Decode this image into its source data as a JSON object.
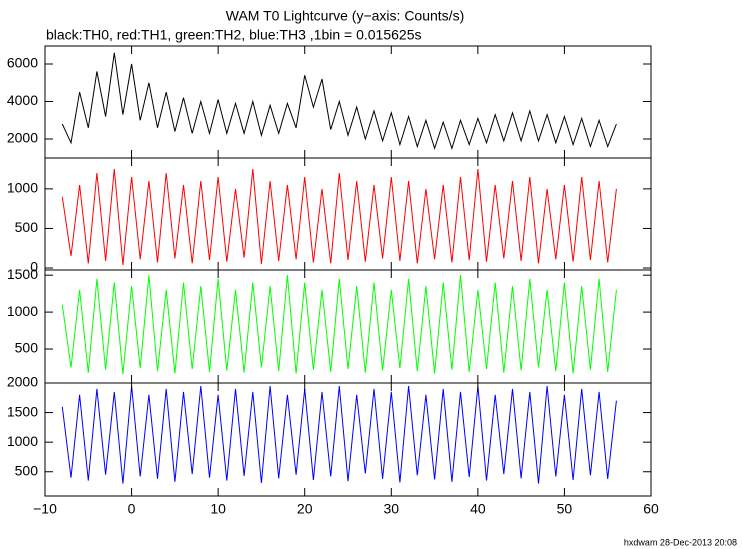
{
  "title": "WAM T0 Lightcurve (y−axis: Counts/s)",
  "subtitle": "black:TH0, red:TH1, green:TH2, blue:TH3 ,1bin = 0.015625s",
  "footer": "hxdwam 28-Dec-2013 20:08",
  "chart_data": [
    {
      "type": "line",
      "xlim": [
        -10,
        60
      ],
      "ylim": [
        987,
        6960
      ],
      "yticks": [
        2000,
        4000,
        6000
      ],
      "x": [
        -8,
        -7,
        -6,
        -5,
        -4,
        -3,
        -2,
        -1,
        0,
        1,
        2,
        3,
        4,
        5,
        6,
        7,
        8,
        9,
        10,
        11,
        12,
        13,
        14,
        15,
        16,
        17,
        18,
        19,
        20,
        21,
        22,
        23,
        24,
        25,
        26,
        27,
        28,
        29,
        30,
        31,
        32,
        33,
        34,
        35,
        36,
        37,
        38,
        39,
        40,
        41,
        42,
        43,
        44,
        45,
        46,
        47,
        48,
        49,
        50,
        51,
        52,
        53,
        54,
        55,
        56
      ],
      "series": [
        {
          "color": "#000000",
          "values": [
            2800,
            1800,
            4500,
            2600,
            5600,
            3200,
            6600,
            3300,
            6000,
            3000,
            5000,
            2600,
            4500,
            2400,
            4200,
            2300,
            4000,
            2300,
            4100,
            2300,
            3900,
            2300,
            4000,
            2200,
            3800,
            2300,
            3900,
            2600,
            5400,
            3700,
            5200,
            2500,
            4000,
            2200,
            3700,
            2000,
            3500,
            1900,
            3400,
            1700,
            3200,
            1600,
            3000,
            1500,
            2900,
            1500,
            3000,
            1700,
            3100,
            1800,
            3300,
            1900,
            3400,
            1900,
            3500,
            1900,
            3300,
            1800,
            3200,
            1700,
            3100,
            1600,
            3000,
            1600,
            2800
          ]
        }
      ]
    },
    {
      "type": "line",
      "xlim": [
        -10,
        60
      ],
      "ylim": [
        -25,
        1390
      ],
      "yticks": [
        0,
        500,
        1000
      ],
      "x": [
        -8,
        -7,
        -6,
        -5,
        -4,
        -3,
        -2,
        -1,
        0,
        1,
        2,
        3,
        4,
        5,
        6,
        7,
        8,
        9,
        10,
        11,
        12,
        13,
        14,
        15,
        16,
        17,
        18,
        19,
        20,
        21,
        22,
        23,
        24,
        25,
        26,
        27,
        28,
        29,
        30,
        31,
        32,
        33,
        34,
        35,
        36,
        37,
        38,
        39,
        40,
        41,
        42,
        43,
        44,
        45,
        46,
        47,
        48,
        49,
        50,
        51,
        52,
        53,
        54,
        55,
        56
      ],
      "series": [
        {
          "color": "#ff0000",
          "values": [
            900,
            150,
            1050,
            60,
            1200,
            90,
            1250,
            40,
            1150,
            110,
            1100,
            70,
            1200,
            120,
            1050,
            60,
            1100,
            100,
            1150,
            80,
            1000,
            130,
            1250,
            50,
            1100,
            90,
            1050,
            110,
            1150,
            70,
            1000,
            60,
            1200,
            100,
            1100,
            80,
            1050,
            120,
            1150,
            90,
            1100,
            60,
            1000,
            110,
            1050,
            70,
            1150,
            100,
            1250,
            80,
            1050,
            120,
            1100,
            90,
            1150,
            60,
            1000,
            110,
            1050,
            80,
            1150,
            100,
            1100,
            70,
            1000
          ]
        }
      ]
    },
    {
      "type": "line",
      "xlim": [
        -10,
        60
      ],
      "ylim": [
        40,
        1570
      ],
      "yticks": [
        500,
        1000,
        1500
      ],
      "x": [
        -8,
        -7,
        -6,
        -5,
        -4,
        -3,
        -2,
        -1,
        0,
        1,
        2,
        3,
        4,
        5,
        6,
        7,
        8,
        9,
        10,
        11,
        12,
        13,
        14,
        15,
        16,
        17,
        18,
        19,
        20,
        21,
        22,
        23,
        24,
        25,
        26,
        27,
        28,
        29,
        30,
        31,
        32,
        33,
        34,
        35,
        36,
        37,
        38,
        39,
        40,
        41,
        42,
        43,
        44,
        45,
        46,
        47,
        48,
        49,
        50,
        51,
        52,
        53,
        54,
        55,
        56
      ],
      "series": [
        {
          "color": "#00ff00",
          "values": [
            1100,
            250,
            1300,
            180,
            1450,
            220,
            1400,
            160,
            1350,
            240,
            1500,
            200,
            1300,
            170,
            1400,
            230,
            1350,
            190,
            1450,
            210,
            1300,
            180,
            1400,
            250,
            1350,
            200,
            1500,
            170,
            1400,
            220,
            1300,
            190,
            1450,
            230,
            1350,
            180,
            1400,
            210,
            1300,
            240,
            1450,
            200,
            1350,
            170,
            1400,
            220,
            1500,
            190,
            1300,
            230,
            1400,
            180,
            1350,
            210,
            1450,
            250,
            1300,
            200,
            1400,
            170,
            1350,
            220,
            1450,
            190,
            1300
          ]
        }
      ]
    },
    {
      "type": "line",
      "xlim": [
        -10,
        60
      ],
      "ylim": [
        90,
        2000
      ],
      "yticks": [
        500,
        1000,
        1500,
        2000
      ],
      "xticks": [
        {
          "value": -10,
          "label": "−10"
        },
        0,
        10,
        20,
        30,
        40,
        50,
        60
      ],
      "x": [
        -8,
        -7,
        -6,
        -5,
        -4,
        -3,
        -2,
        -1,
        0,
        1,
        2,
        3,
        4,
        5,
        6,
        7,
        8,
        9,
        10,
        11,
        12,
        13,
        14,
        15,
        16,
        17,
        18,
        19,
        20,
        21,
        22,
        23,
        24,
        25,
        26,
        27,
        28,
        29,
        30,
        31,
        32,
        33,
        34,
        35,
        36,
        37,
        38,
        39,
        40,
        41,
        42,
        43,
        44,
        45,
        46,
        47,
        48,
        49,
        50,
        51,
        52,
        53,
        54,
        55,
        56
      ],
      "series": [
        {
          "color": "#0000ff",
          "values": [
            1600,
            400,
            1800,
            350,
            1900,
            450,
            1850,
            300,
            1950,
            420,
            1800,
            380,
            1900,
            330,
            1850,
            460,
            1950,
            400,
            1800,
            350,
            1900,
            430,
            1850,
            310,
            1950,
            390,
            1800,
            450,
            1900,
            360,
            1850,
            420,
            1950,
            340,
            1800,
            470,
            1900,
            380,
            1850,
            320,
            1950,
            440,
            1800,
            370,
            1900,
            330,
            1850,
            410,
            1950,
            350,
            1800,
            460,
            1900,
            390,
            1850,
            300,
            1950,
            420,
            1800,
            360,
            1900,
            440,
            1850,
            380,
            1700
          ]
        }
      ]
    }
  ]
}
